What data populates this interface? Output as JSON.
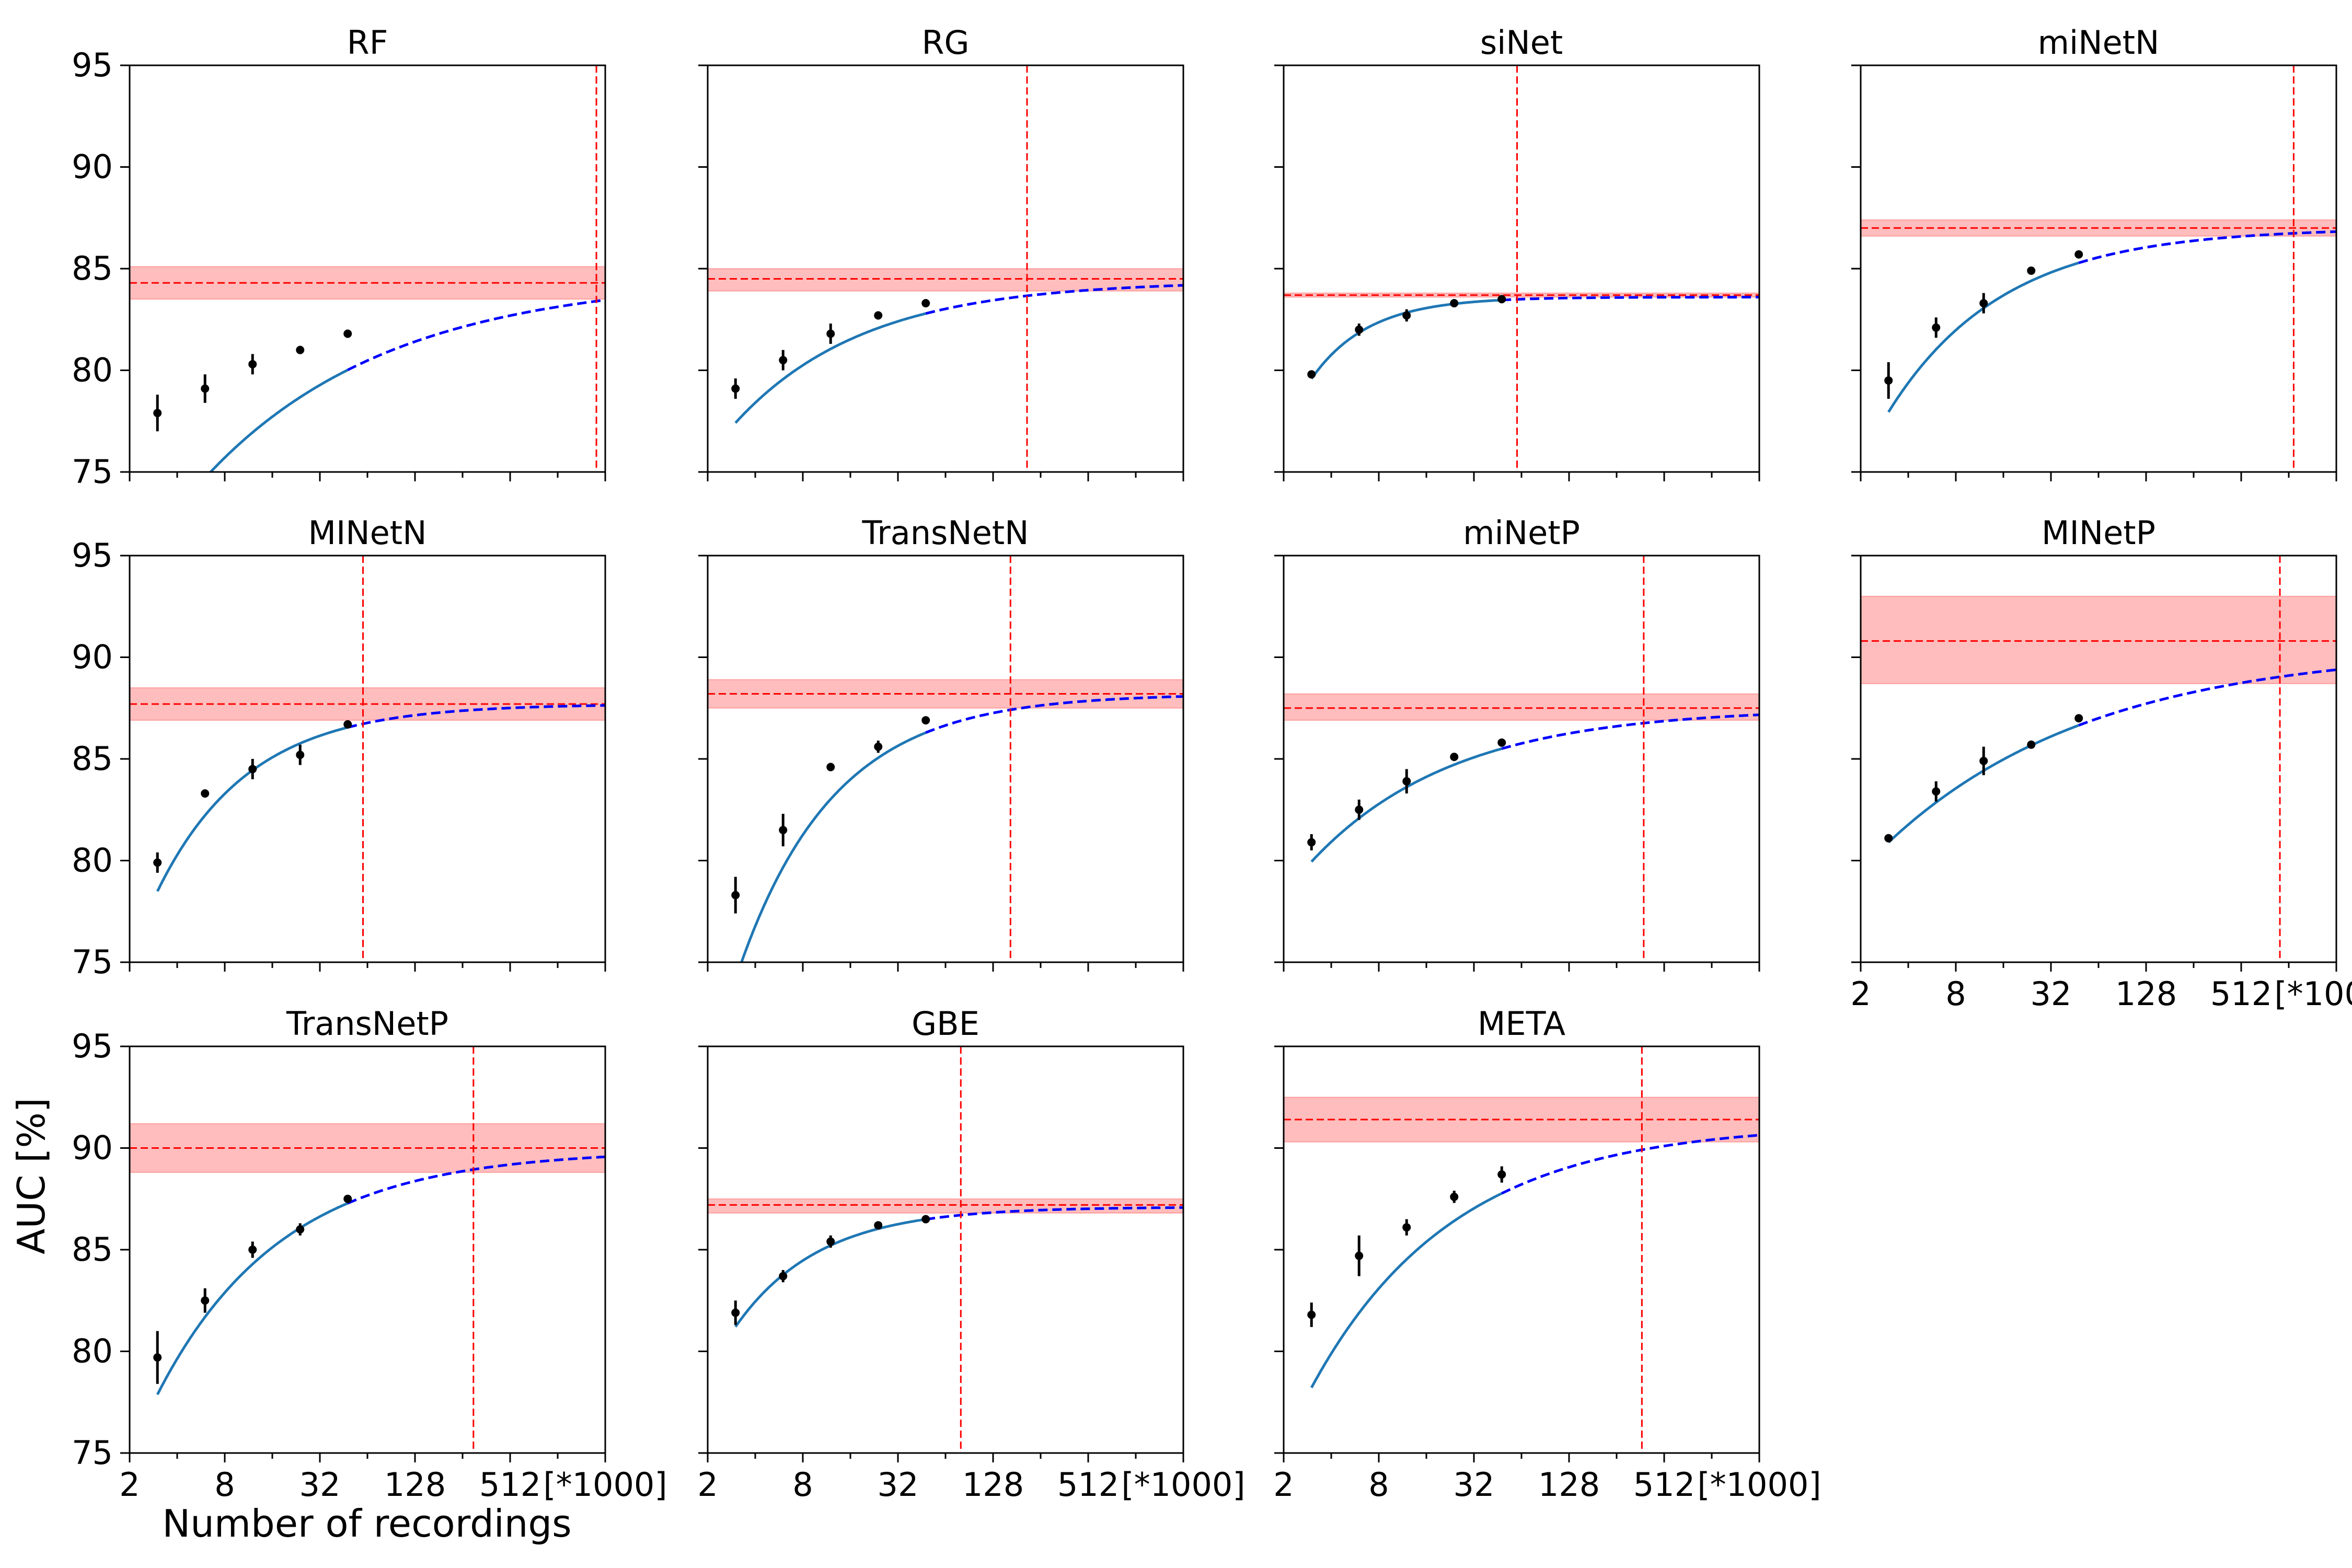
{
  "figure": {
    "ylabel": "AUC [%]",
    "xlabel": "Number of recordings",
    "xticks": [
      "2",
      "8",
      "32",
      "128",
      "512",
      "[*1000]"
    ],
    "yticks": [
      "75",
      "80",
      "85",
      "90",
      "95"
    ],
    "colors": {
      "fit": "#1f77b4",
      "extrapolation": "#0000ff",
      "reference": "#ff0000",
      "band": "#ff9999",
      "points": "#000000"
    }
  },
  "chart_data": [
    {
      "type": "line",
      "title": "RF",
      "x_scale": "log2",
      "xlim": [
        2,
        2048
      ],
      "ylim": [
        75,
        95
      ],
      "x": [
        3,
        6,
        12,
        24,
        48
      ],
      "y": [
        77.9,
        79.1,
        80.3,
        81.0,
        81.8
      ],
      "yerr": [
        0.9,
        0.7,
        0.5,
        0.2,
        0.2
      ],
      "fit": {
        "asymptote": 84.6,
        "amplitude": 19.2,
        "rate": 0.37
      },
      "reference": 84.3,
      "band": [
        83.5,
        85.1
      ],
      "vline_x": 1800
    },
    {
      "type": "line",
      "title": "RG",
      "x_scale": "log2",
      "xlim": [
        2,
        2048
      ],
      "ylim": [
        75,
        95
      ],
      "x": [
        3,
        6,
        12,
        24,
        48
      ],
      "y": [
        79.1,
        80.5,
        81.8,
        82.7,
        83.3
      ],
      "yerr": [
        0.5,
        0.5,
        0.5,
        0.2,
        0.2
      ],
      "fit": {
        "asymptote": 84.4,
        "amplitude": 12.5,
        "rate": 0.53
      },
      "reference": 84.5,
      "band": [
        83.9,
        85.0
      ],
      "vline_x": 210
    },
    {
      "type": "line",
      "title": "siNet",
      "x_scale": "log2",
      "xlim": [
        2,
        2048
      ],
      "ylim": [
        75,
        95
      ],
      "x": [
        3,
        6,
        12,
        24,
        48
      ],
      "y": [
        79.8,
        82.0,
        82.7,
        83.3,
        83.5
      ],
      "yerr": [
        0.2,
        0.3,
        0.3,
        0.2,
        0.1
      ],
      "fit": {
        "asymptote": 83.6,
        "amplitude": 15.0,
        "rate": 1.2
      },
      "reference": 83.7,
      "band": [
        83.6,
        83.8
      ],
      "vline_x": 60
    },
    {
      "type": "line",
      "title": "miNetN",
      "x_scale": "log2",
      "xlim": [
        2,
        2048
      ],
      "ylim": [
        75,
        95
      ],
      "x": [
        3,
        6,
        12,
        24,
        48
      ],
      "y": [
        79.5,
        82.1,
        83.3,
        84.9,
        85.7
      ],
      "yerr": [
        0.9,
        0.5,
        0.5,
        0.1,
        0.1
      ],
      "fit": {
        "asymptote": 87.0,
        "amplitude": 17.5,
        "rate": 0.6
      },
      "reference": 87.0,
      "band": [
        86.6,
        87.4
      ],
      "vline_x": 1100
    },
    {
      "type": "line",
      "title": "MINetN",
      "x_scale": "log2",
      "xlim": [
        2,
        2048
      ],
      "ylim": [
        75,
        95
      ],
      "x": [
        3,
        6,
        12,
        24,
        48
      ],
      "y": [
        79.9,
        83.3,
        84.5,
        85.2,
        86.7
      ],
      "yerr": [
        0.5,
        0.2,
        0.5,
        0.5,
        0.1
      ],
      "fit": {
        "asymptote": 87.7,
        "amplitude": 21.0,
        "rate": 0.75
      },
      "reference": 87.7,
      "band": [
        86.9,
        88.5
      ],
      "vline_x": 60
    },
    {
      "type": "line",
      "title": "TransNetN",
      "x_scale": "log2",
      "xlim": [
        2,
        2048
      ],
      "ylim": [
        75,
        95
      ],
      "x": [
        3,
        6,
        12,
        24,
        48
      ],
      "y": [
        78.3,
        81.5,
        84.6,
        85.6,
        86.9
      ],
      "yerr": [
        0.9,
        0.8,
        0.2,
        0.3,
        0.1
      ],
      "fit": {
        "asymptote": 88.2,
        "amplitude": 31.0,
        "rate": 0.72
      },
      "reference": 88.2,
      "band": [
        87.5,
        88.9
      ],
      "vline_x": 165
    },
    {
      "type": "line",
      "title": "miNetP",
      "x_scale": "log2",
      "xlim": [
        2,
        2048
      ],
      "ylim": [
        75,
        95
      ],
      "x": [
        3,
        6,
        12,
        24,
        48
      ],
      "y": [
        80.9,
        82.5,
        83.9,
        85.1,
        85.8
      ],
      "yerr": [
        0.4,
        0.5,
        0.6,
        0.1,
        0.1
      ],
      "fit": {
        "asymptote": 87.5,
        "amplitude": 12.8,
        "rate": 0.48
      },
      "reference": 87.5,
      "band": [
        86.9,
        88.2
      ],
      "vline_x": 380
    },
    {
      "type": "line",
      "title": "MINetP",
      "x_scale": "log2",
      "xlim": [
        2,
        2048
      ],
      "ylim": [
        75,
        95
      ],
      "x": [
        3,
        6,
        12,
        24,
        48
      ],
      "y": [
        81.1,
        83.4,
        84.9,
        85.7,
        87.0
      ],
      "yerr": [
        0.2,
        0.5,
        0.7,
        0.1,
        0.1
      ],
      "fit": {
        "asymptote": 90.5,
        "amplitude": 13.8,
        "rate": 0.33
      },
      "reference": 90.8,
      "band": [
        88.7,
        93.0
      ],
      "vline_x": 900
    },
    {
      "type": "line",
      "title": "TransNetP",
      "x_scale": "log2",
      "xlim": [
        2,
        2048
      ],
      "ylim": [
        75,
        95
      ],
      "x": [
        3,
        6,
        12,
        24,
        48
      ],
      "y": [
        79.7,
        82.5,
        85.0,
        86.0,
        87.5
      ],
      "yerr": [
        1.3,
        0.6,
        0.4,
        0.3,
        0.1
      ],
      "fit": {
        "asymptote": 89.9,
        "amplitude": 22.0,
        "rate": 0.55
      },
      "reference": 90.0,
      "band": [
        88.8,
        91.2
      ],
      "vline_x": 300
    },
    {
      "type": "line",
      "title": "GBE",
      "x_scale": "log2",
      "xlim": [
        2,
        2048
      ],
      "ylim": [
        75,
        95
      ],
      "x": [
        3,
        6,
        12,
        24,
        48
      ],
      "y": [
        81.9,
        83.7,
        85.4,
        86.2,
        86.5
      ],
      "yerr": [
        0.6,
        0.3,
        0.3,
        0.1,
        0.1
      ],
      "fit": {
        "asymptote": 87.1,
        "amplitude": 14.5,
        "rate": 0.82
      },
      "reference": 87.2,
      "band": [
        86.8,
        87.5
      ],
      "vline_x": 80
    },
    {
      "type": "line",
      "title": "META",
      "x_scale": "log2",
      "xlim": [
        2,
        2048
      ],
      "ylim": [
        75,
        95
      ],
      "x": [
        3,
        6,
        12,
        24,
        48
      ],
      "y": [
        81.8,
        84.7,
        86.1,
        87.6,
        88.7
      ],
      "yerr": [
        0.6,
        1.0,
        0.4,
        0.3,
        0.4
      ],
      "fit": {
        "asymptote": 91.2,
        "amplitude": 22.0,
        "rate": 0.48
      },
      "reference": 91.4,
      "band": [
        90.3,
        92.5
      ],
      "vline_x": 370
    }
  ]
}
